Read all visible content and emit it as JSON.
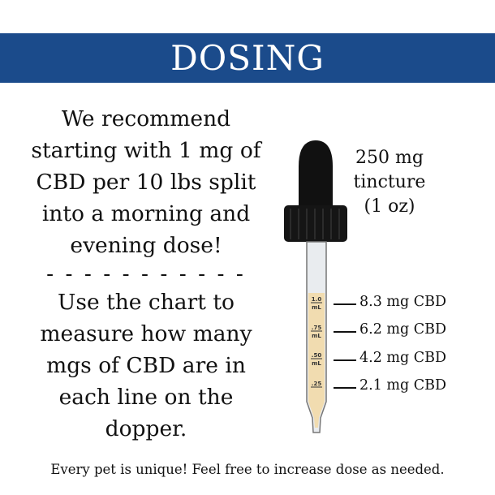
{
  "header": {
    "title": "DOSING",
    "color": "#1b4b8b"
  },
  "recommendation": {
    "lines": [
      "We recommend",
      "starting with 1 mg of",
      "CBD per 10 lbs split",
      "into a morning and",
      "evening dose!"
    ],
    "divider": "- - - - - - - - - - -",
    "chart_lines": [
      "Use the chart to",
      "measure how many",
      "mgs of CBD are in",
      "each line on the",
      "dopper."
    ]
  },
  "product": {
    "lines": [
      "250 mg",
      "tincture",
      "(1 oz)"
    ]
  },
  "dropper": {
    "marks": [
      {
        "volume": "1.0",
        "unit": "mL",
        "dose": "8.3 mg CBD"
      },
      {
        "volume": ".75",
        "unit": "mL",
        "dose": "6.2 mg CBD"
      },
      {
        "volume": ".50",
        "unit": "mL",
        "dose": "4.2 mg CBD"
      },
      {
        "volume": ".25",
        "unit": "",
        "dose": "2.1 mg CBD"
      }
    ],
    "liquid_color": "#f1dcb0"
  },
  "footer": {
    "text": "Every pet is unique! Feel free to increase dose as needed."
  }
}
